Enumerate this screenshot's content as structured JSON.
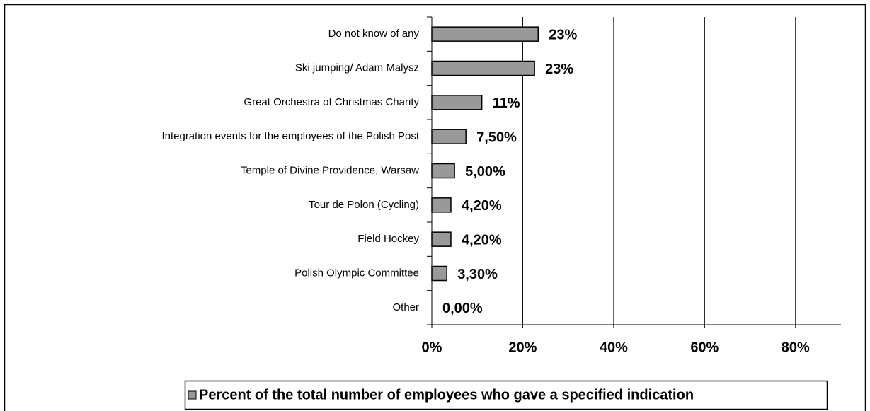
{
  "chart_data": {
    "type": "bar",
    "orientation": "horizontal",
    "categories": [
      "Do not know of any",
      "Ski jumping/ Adam Malysz",
      "Great Orchestra of Christmas Charity",
      "Integration events for the employees of the Polish Post",
      "Temple of Divine Providence, Warsaw",
      "Tour de Polon (Cycling)",
      "Field Hockey",
      "Polish Olympic Committee",
      "Other"
    ],
    "series": [
      {
        "name": "Percent of the total number of employees who gave a specified indication",
        "color": "#999999",
        "values": [
          23.4,
          22.6,
          11,
          7.5,
          5,
          4.2,
          4.2,
          3.3,
          0
        ],
        "value_labels": [
          "23%",
          "23%",
          "11%",
          "7,50%",
          "5,00%",
          "4,20%",
          "4,20%",
          "3,30%",
          "0,00%"
        ]
      }
    ],
    "xlim": [
      0,
      90
    ],
    "xticks": [
      {
        "value": 0,
        "label": "0%"
      },
      {
        "value": 20,
        "label": "20%"
      },
      {
        "value": 40,
        "label": "40%"
      },
      {
        "value": 60,
        "label": "60%"
      },
      {
        "value": 80,
        "label": "80%"
      }
    ],
    "grid": true,
    "legend": "bottom"
  }
}
